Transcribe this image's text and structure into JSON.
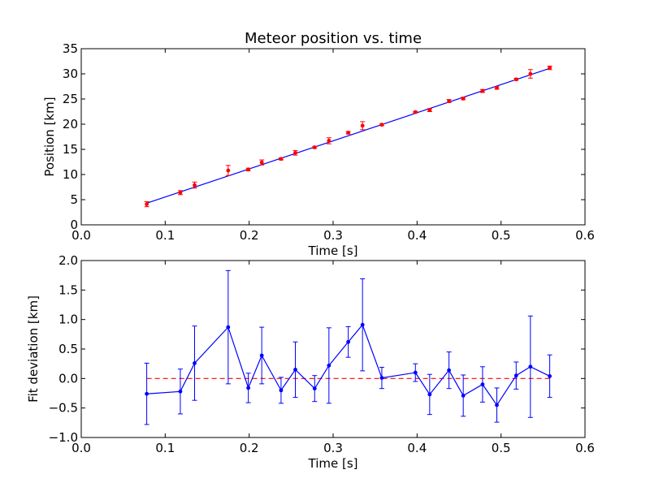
{
  "chart_data": [
    {
      "type": "scatter",
      "title": "Meteor position vs. time",
      "xlabel": "Time [s]",
      "ylabel": "Position [km]",
      "xlim": [
        0.0,
        0.6
      ],
      "ylim": [
        0,
        35
      ],
      "xticks": [
        "0.0",
        "0.1",
        "0.2",
        "0.3",
        "0.4",
        "0.5",
        "0.6"
      ],
      "yticks": [
        "0",
        "5",
        "10",
        "15",
        "20",
        "25",
        "30",
        "35"
      ],
      "grid": false,
      "colors": {
        "points": "#ff0000",
        "fit": "#0000ff"
      },
      "series": [
        {
          "kind": "errorbar-points",
          "x": [
            0.078,
            0.118,
            0.135,
            0.175,
            0.199,
            0.215,
            0.238,
            0.255,
            0.278,
            0.295,
            0.318,
            0.335,
            0.358,
            0.398,
            0.415,
            0.438,
            0.455,
            0.478,
            0.495,
            0.518,
            0.535,
            0.558
          ],
          "y": [
            4.1,
            6.4,
            7.9,
            10.8,
            11.0,
            12.4,
            13.1,
            14.3,
            15.4,
            16.7,
            18.3,
            19.7,
            19.9,
            22.4,
            22.8,
            24.6,
            25.1,
            26.6,
            27.2,
            28.9,
            30.0,
            31.2
          ],
          "yerr": [
            0.5,
            0.4,
            0.6,
            1.0,
            0.25,
            0.5,
            0.2,
            0.45,
            0.2,
            0.6,
            0.25,
            0.8,
            0.2,
            0.15,
            0.3,
            0.3,
            0.25,
            0.3,
            0.25,
            0.2,
            0.85,
            0.35
          ]
        },
        {
          "kind": "fit-line",
          "x": [
            0.078,
            0.558
          ],
          "y": [
            4.3,
            31.1
          ]
        }
      ]
    },
    {
      "type": "line",
      "title": "",
      "xlabel": "Time [s]",
      "ylabel": "Fit deviation [km]",
      "xlim": [
        0.0,
        0.6
      ],
      "ylim": [
        -1.0,
        2.0
      ],
      "xticks": [
        "0.0",
        "0.1",
        "0.2",
        "0.3",
        "0.4",
        "0.5",
        "0.6"
      ],
      "yticks": [
        "−1.0",
        "−0.5",
        "0.0",
        "0.5",
        "1.0",
        "1.5",
        "2.0"
      ],
      "grid": false,
      "colors": {
        "deviation": "#0000ff",
        "zero": "#ff0000"
      },
      "series": [
        {
          "kind": "errorbar-line",
          "x": [
            0.078,
            0.118,
            0.135,
            0.175,
            0.199,
            0.215,
            0.238,
            0.255,
            0.278,
            0.295,
            0.318,
            0.335,
            0.358,
            0.398,
            0.415,
            0.438,
            0.455,
            0.478,
            0.495,
            0.518,
            0.535,
            0.558
          ],
          "y": [
            -0.26,
            -0.22,
            0.26,
            0.87,
            -0.16,
            0.39,
            -0.2,
            0.15,
            -0.17,
            0.22,
            0.62,
            0.91,
            0.01,
            0.1,
            -0.27,
            0.14,
            -0.29,
            -0.1,
            -0.45,
            0.05,
            0.2,
            0.04
          ],
          "yerr": [
            0.52,
            0.38,
            0.63,
            0.96,
            0.25,
            0.48,
            0.22,
            0.47,
            0.22,
            0.64,
            0.26,
            0.78,
            0.18,
            0.15,
            0.34,
            0.31,
            0.35,
            0.3,
            0.29,
            0.23,
            0.86,
            0.36
          ]
        },
        {
          "kind": "zero-reference",
          "x": [
            0.078,
            0.558
          ],
          "y": [
            0.0,
            0.0
          ],
          "style": "dashed"
        }
      ]
    }
  ]
}
